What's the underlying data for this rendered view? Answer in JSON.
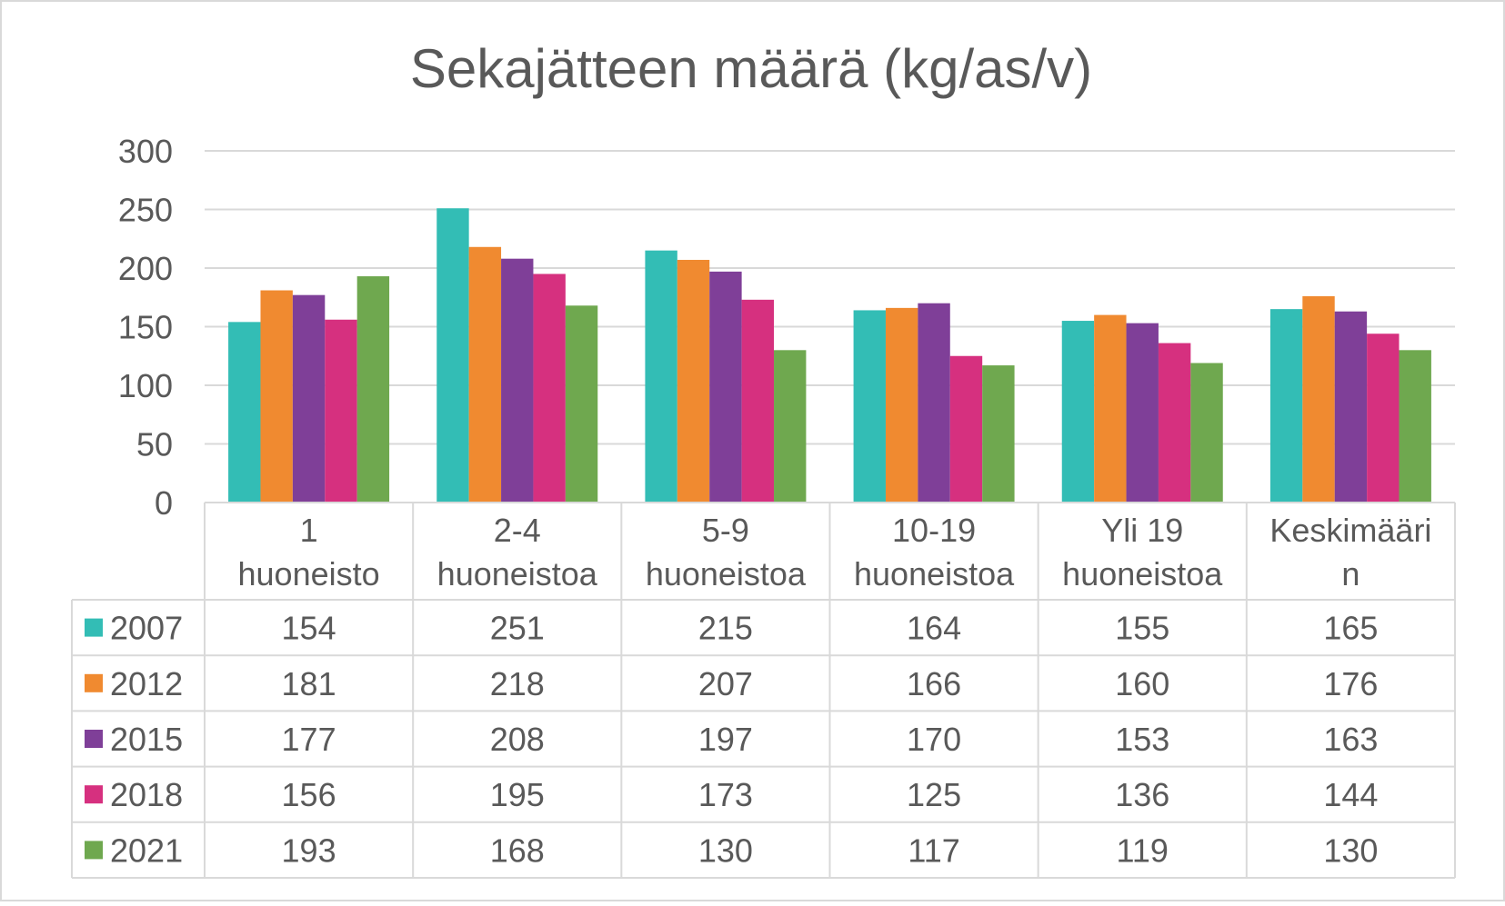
{
  "chart_data": {
    "type": "bar",
    "title": "Sekajätteen määrä (kg/as/v)",
    "xlabel": "",
    "ylabel": "",
    "ylim": [
      0,
      300
    ],
    "yticks": [
      0,
      50,
      100,
      150,
      200,
      250,
      300
    ],
    "grid": true,
    "legend": "data-table",
    "categories": [
      [
        "1",
        "huoneisto"
      ],
      [
        "2-4",
        "huoneistoa"
      ],
      [
        "5-9",
        "huoneistoa"
      ],
      [
        "10-19",
        "huoneistoa"
      ],
      [
        "Yli 19",
        "huoneistoa"
      ],
      [
        "Keskimääri",
        "n"
      ]
    ],
    "series": [
      {
        "name": "2007",
        "color": "#33bdb5",
        "values": [
          154,
          251,
          215,
          164,
          155,
          165
        ]
      },
      {
        "name": "2012",
        "color": "#f08a30",
        "values": [
          181,
          218,
          207,
          166,
          160,
          176
        ]
      },
      {
        "name": "2015",
        "color": "#7f3f98",
        "values": [
          177,
          208,
          197,
          170,
          153,
          163
        ]
      },
      {
        "name": "2018",
        "color": "#d6307f",
        "values": [
          156,
          195,
          173,
          125,
          136,
          144
        ]
      },
      {
        "name": "2021",
        "color": "#6fa84f",
        "values": [
          193,
          168,
          130,
          117,
          119,
          130
        ]
      }
    ]
  }
}
